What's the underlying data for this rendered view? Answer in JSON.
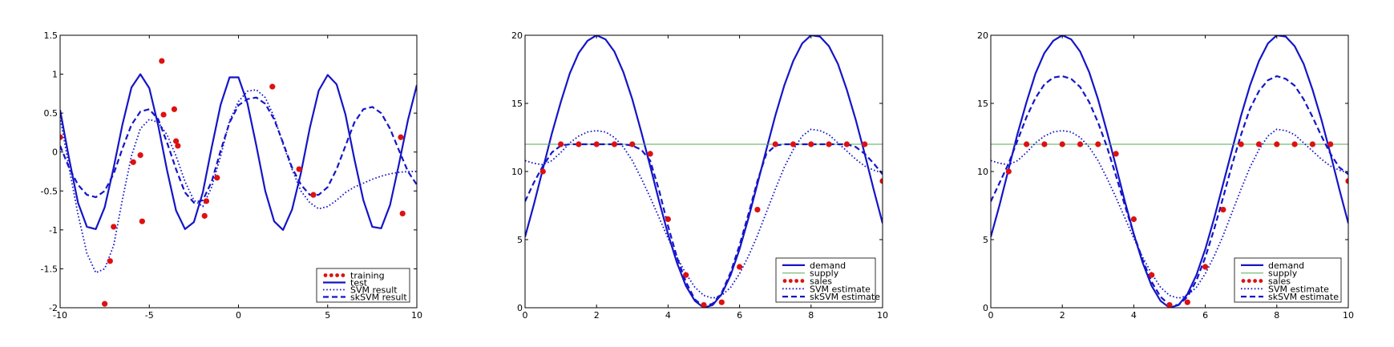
{
  "colors": {
    "line": "#1515c8",
    "points": "#dd1111",
    "supply": "#55aa55",
    "axis": "#000000",
    "legend_border": "#000000"
  },
  "chart_data": [
    {
      "type": "line",
      "title": "",
      "xlabel": "",
      "ylabel": "",
      "xlim": [
        -10,
        10
      ],
      "ylim": [
        -2,
        1.5
      ],
      "xticks": [
        "-10",
        "-5",
        "0",
        "5",
        "10"
      ],
      "yticks": [
        "-2",
        "-1.5",
        "-1",
        "-0.5",
        "0",
        "0.5",
        "1",
        "1.5"
      ],
      "grid": false,
      "legend_position": "lower-right",
      "series": [
        {
          "name": "training",
          "style": "points",
          "x": [
            -10,
            -7.5,
            -7.2,
            -7.0,
            -5.9,
            -5.5,
            -5.4,
            -4.3,
            -4.2,
            -3.6,
            -3.5,
            -3.4,
            -1.9,
            -1.8,
            -1.2,
            1.9,
            3.4,
            4.2,
            9.1,
            9.2
          ],
          "y": [
            0.19,
            -1.95,
            -1.4,
            -0.96,
            -0.13,
            -0.04,
            -0.89,
            1.17,
            0.48,
            0.55,
            0.14,
            0.08,
            -0.82,
            -0.63,
            -0.33,
            0.84,
            -0.22,
            -0.55,
            0.19,
            -0.79
          ]
        },
        {
          "name": "test",
          "style": "solid",
          "x": [
            -10,
            -9.5,
            -9,
            -8.5,
            -8,
            -7.5,
            -7,
            -6.5,
            -6,
            -5.5,
            -5,
            -4.5,
            -4,
            -3.5,
            -3,
            -2.5,
            -2,
            -1.5,
            -1,
            -0.5,
            0,
            0.5,
            1,
            1.5,
            2,
            2.5,
            3,
            3.5,
            4,
            4.5,
            5,
            5.5,
            6,
            6.5,
            7,
            7.5,
            8,
            8.5,
            9,
            9.5,
            10
          ],
          "y": [
            0.54,
            -0.08,
            -0.65,
            -0.96,
            -0.99,
            -0.71,
            -0.2,
            0.36,
            0.83,
            1.0,
            0.82,
            0.34,
            -0.24,
            -0.75,
            -0.99,
            -0.9,
            -0.52,
            0.06,
            0.61,
            0.96,
            0.96,
            0.63,
            0.08,
            -0.5,
            -0.89,
            -1.0,
            -0.74,
            -0.27,
            0.31,
            0.79,
            0.99,
            0.87,
            0.48,
            -0.09,
            -0.62,
            -0.96,
            -0.98,
            -0.68,
            -0.15,
            0.41,
            0.86
          ]
        },
        {
          "name": "SVM result",
          "style": "dotted",
          "x": [
            -10,
            -9.5,
            -9,
            -8.5,
            -8,
            -7.5,
            -7,
            -6.5,
            -6,
            -5.5,
            -5,
            -4.5,
            -4,
            -3.5,
            -3,
            -2.5,
            -2,
            -1.5,
            -1,
            -0.5,
            0,
            0.5,
            1,
            1.5,
            2,
            2.5,
            3,
            3.5,
            4,
            4.5,
            5,
            5.5,
            6,
            6.5,
            7,
            7.5,
            8,
            8.5,
            9,
            9.5,
            10
          ],
          "y": [
            0.45,
            -0.2,
            -0.8,
            -1.3,
            -1.55,
            -1.5,
            -1.2,
            -0.6,
            -0.05,
            0.3,
            0.42,
            0.38,
            0.22,
            -0.05,
            -0.38,
            -0.62,
            -0.7,
            -0.45,
            -0.05,
            0.4,
            0.65,
            0.78,
            0.8,
            0.7,
            0.45,
            0.1,
            -0.22,
            -0.5,
            -0.65,
            -0.73,
            -0.7,
            -0.62,
            -0.52,
            -0.45,
            -0.4,
            -0.35,
            -0.31,
            -0.28,
            -0.26,
            -0.25,
            -0.25
          ]
        },
        {
          "name": "skSVM result",
          "style": "dashed",
          "x": [
            -10,
            -9.5,
            -9,
            -8.5,
            -8,
            -7.5,
            -7,
            -6.5,
            -6,
            -5.5,
            -5,
            -4.5,
            -4,
            -3.5,
            -3,
            -2.5,
            -2,
            -1.5,
            -1,
            -0.5,
            0,
            0.5,
            1,
            1.5,
            2,
            2.5,
            3,
            3.5,
            4,
            4.5,
            5,
            5.5,
            6,
            6.5,
            7,
            7.5,
            8,
            8.5,
            9,
            9.5,
            10
          ],
          "y": [
            0.08,
            -0.2,
            -0.42,
            -0.55,
            -0.58,
            -0.5,
            -0.28,
            0.05,
            0.35,
            0.52,
            0.55,
            0.42,
            0.12,
            -0.22,
            -0.52,
            -0.65,
            -0.62,
            -0.38,
            0.02,
            0.38,
            0.6,
            0.68,
            0.7,
            0.62,
            0.42,
            0.12,
            -0.2,
            -0.42,
            -0.55,
            -0.55,
            -0.45,
            -0.22,
            0.08,
            0.38,
            0.55,
            0.58,
            0.5,
            0.3,
            0.02,
            -0.25,
            -0.42
          ]
        }
      ]
    },
    {
      "type": "line",
      "title": "",
      "xlabel": "",
      "ylabel": "",
      "xlim": [
        0,
        10
      ],
      "ylim": [
        0,
        20
      ],
      "xticks": [
        "0",
        "2",
        "4",
        "6",
        "8",
        "10"
      ],
      "yticks": [
        "0",
        "5",
        "10",
        "15",
        "20"
      ],
      "grid": false,
      "legend_position": "lower-right",
      "series": [
        {
          "name": "demand",
          "style": "solid",
          "x": [
            0,
            0.25,
            0.5,
            0.75,
            1,
            1.25,
            1.5,
            1.75,
            2,
            2.25,
            2.5,
            2.75,
            3,
            3.25,
            3.5,
            3.75,
            4,
            4.25,
            4.5,
            4.75,
            5,
            5.25,
            5.5,
            5.75,
            6,
            6.25,
            6.5,
            6.75,
            7,
            7.25,
            7.5,
            7.75,
            8,
            8.25,
            8.5,
            8.75,
            9,
            9.25,
            9.5,
            9.75,
            10
          ],
          "y": [
            5.2,
            7.6,
            10.2,
            12.8,
            15.1,
            17.2,
            18.7,
            19.6,
            20.0,
            19.7,
            18.8,
            17.3,
            15.3,
            12.9,
            10.4,
            7.8,
            5.4,
            3.3,
            1.6,
            0.5,
            0.0,
            0.2,
            1.0,
            2.4,
            4.3,
            6.6,
            9.1,
            11.6,
            14.1,
            16.3,
            18.1,
            19.4,
            20.0,
            19.9,
            19.2,
            17.9,
            16.0,
            13.8,
            11.3,
            8.7,
            6.2
          ]
        },
        {
          "name": "supply",
          "style": "thin",
          "x": [
            0,
            10
          ],
          "y": [
            12,
            12
          ]
        },
        {
          "name": "sales",
          "style": "points",
          "x": [
            0.5,
            1,
            1.5,
            2,
            2.5,
            3,
            3.5,
            4,
            4.5,
            5,
            5.5,
            6,
            6.5,
            7,
            7.5,
            8,
            8.5,
            9,
            9.5,
            10
          ],
          "y": [
            10.0,
            12,
            12,
            12,
            12,
            12,
            11.3,
            6.5,
            2.4,
            0.2,
            0.4,
            3.0,
            7.2,
            12,
            12,
            12,
            12,
            12,
            12,
            9.3
          ]
        },
        {
          "name": "SVM estimate",
          "style": "dotted",
          "x": [
            0,
            0.25,
            0.5,
            0.75,
            1,
            1.25,
            1.5,
            1.75,
            2,
            2.25,
            2.5,
            2.75,
            3,
            3.25,
            3.5,
            3.75,
            4,
            4.25,
            4.5,
            4.75,
            5,
            5.25,
            5.5,
            5.75,
            6,
            6.25,
            6.5,
            6.75,
            7,
            7.25,
            7.5,
            7.75,
            8,
            8.25,
            8.5,
            8.75,
            9,
            9.25,
            9.5,
            9.75,
            10
          ],
          "y": [
            10.8,
            10.6,
            10.5,
            10.8,
            11.4,
            12.1,
            12.6,
            12.9,
            13.0,
            12.9,
            12.5,
            11.8,
            10.8,
            9.5,
            8.1,
            6.6,
            5.1,
            3.7,
            2.5,
            1.5,
            0.9,
            0.7,
            0.9,
            1.5,
            2.5,
            3.8,
            5.3,
            7.0,
            8.7,
            10.3,
            11.6,
            12.6,
            13.1,
            13.0,
            12.7,
            12.1,
            11.5,
            10.9,
            10.4,
            10.1,
            9.9
          ]
        },
        {
          "name": "skSVM estimate",
          "style": "dashed",
          "x": [
            0,
            0.25,
            0.5,
            0.75,
            1,
            1.25,
            1.5,
            1.75,
            2,
            2.25,
            2.5,
            2.75,
            3,
            3.25,
            3.5,
            3.75,
            4,
            4.25,
            4.5,
            4.75,
            5,
            5.25,
            5.5,
            5.75,
            6,
            6.25,
            6.5,
            6.75,
            7,
            7.25,
            7.5,
            7.75,
            8,
            8.25,
            8.5,
            8.75,
            9,
            9.25,
            9.5,
            9.75,
            10
          ],
          "y": [
            7.8,
            9.2,
            10.4,
            11.4,
            11.9,
            12.0,
            12.0,
            12.0,
            12.0,
            12.0,
            12.0,
            12.0,
            11.9,
            11.6,
            10.8,
            8.6,
            6.0,
            3.7,
            1.9,
            0.6,
            0.1,
            0.3,
            1.1,
            2.6,
            4.6,
            6.9,
            9.3,
            11.3,
            11.9,
            12.0,
            12.0,
            12.0,
            12.0,
            12.0,
            12.0,
            12.0,
            12.0,
            11.8,
            11.3,
            10.6,
            9.8
          ]
        }
      ]
    },
    {
      "type": "line",
      "title": "",
      "xlabel": "",
      "ylabel": "",
      "xlim": [
        0,
        10
      ],
      "ylim": [
        0,
        20
      ],
      "xticks": [
        "0",
        "2",
        "4",
        "6",
        "8",
        "10"
      ],
      "yticks": [
        "0",
        "5",
        "10",
        "15",
        "20"
      ],
      "grid": false,
      "legend_position": "lower-right",
      "series": [
        {
          "name": "demand",
          "style": "solid",
          "x": [
            0,
            0.25,
            0.5,
            0.75,
            1,
            1.25,
            1.5,
            1.75,
            2,
            2.25,
            2.5,
            2.75,
            3,
            3.25,
            3.5,
            3.75,
            4,
            4.25,
            4.5,
            4.75,
            5,
            5.25,
            5.5,
            5.75,
            6,
            6.25,
            6.5,
            6.75,
            7,
            7.25,
            7.5,
            7.75,
            8,
            8.25,
            8.5,
            8.75,
            9,
            9.25,
            9.5,
            9.75,
            10
          ],
          "y": [
            5.2,
            7.6,
            10.2,
            12.8,
            15.1,
            17.2,
            18.7,
            19.6,
            20.0,
            19.7,
            18.8,
            17.3,
            15.3,
            12.9,
            10.4,
            7.8,
            5.4,
            3.3,
            1.6,
            0.5,
            0.0,
            0.2,
            1.0,
            2.4,
            4.3,
            6.6,
            9.1,
            11.6,
            14.1,
            16.3,
            18.1,
            19.4,
            20.0,
            19.9,
            19.2,
            17.9,
            16.0,
            13.8,
            11.3,
            8.7,
            6.2
          ]
        },
        {
          "name": "supply",
          "style": "thin",
          "x": [
            0,
            10
          ],
          "y": [
            12,
            12
          ]
        },
        {
          "name": "sales",
          "style": "points",
          "x": [
            0.5,
            1,
            1.5,
            2,
            2.5,
            3,
            3.5,
            4,
            4.5,
            5,
            5.5,
            6,
            6.5,
            7,
            7.5,
            8,
            8.5,
            9,
            9.5,
            10
          ],
          "y": [
            10.0,
            12,
            12,
            12,
            12,
            12,
            11.3,
            6.5,
            2.4,
            0.2,
            0.4,
            3.0,
            7.2,
            12,
            12,
            12,
            12,
            12,
            12,
            9.3
          ]
        },
        {
          "name": "SVM estimate",
          "style": "dotted",
          "x": [
            0,
            0.25,
            0.5,
            0.75,
            1,
            1.25,
            1.5,
            1.75,
            2,
            2.25,
            2.5,
            2.75,
            3,
            3.25,
            3.5,
            3.75,
            4,
            4.25,
            4.5,
            4.75,
            5,
            5.25,
            5.5,
            5.75,
            6,
            6.25,
            6.5,
            6.75,
            7,
            7.25,
            7.5,
            7.75,
            8,
            8.25,
            8.5,
            8.75,
            9,
            9.25,
            9.5,
            9.75,
            10
          ],
          "y": [
            10.8,
            10.6,
            10.5,
            10.8,
            11.4,
            12.1,
            12.6,
            12.9,
            13.0,
            12.9,
            12.5,
            11.8,
            10.8,
            9.5,
            8.1,
            6.6,
            5.1,
            3.7,
            2.5,
            1.5,
            0.9,
            0.7,
            0.9,
            1.5,
            2.5,
            3.8,
            5.3,
            7.0,
            8.7,
            10.3,
            11.6,
            12.6,
            13.1,
            13.0,
            12.7,
            12.1,
            11.5,
            10.9,
            10.4,
            10.1,
            9.9
          ]
        },
        {
          "name": "skSVM estimate",
          "style": "dashed",
          "x": [
            0,
            0.25,
            0.5,
            0.75,
            1,
            1.25,
            1.5,
            1.75,
            2,
            2.25,
            2.5,
            2.75,
            3,
            3.25,
            3.5,
            3.75,
            4,
            4.25,
            4.5,
            4.75,
            5,
            5.25,
            5.5,
            5.75,
            6,
            6.25,
            6.5,
            6.75,
            7,
            7.25,
            7.5,
            7.75,
            8,
            8.25,
            8.5,
            8.75,
            9,
            9.25,
            9.5,
            9.75,
            10
          ],
          "y": [
            7.8,
            9.2,
            10.6,
            12.3,
            14.0,
            15.4,
            16.4,
            16.9,
            17.0,
            16.8,
            16.2,
            15.1,
            13.6,
            11.8,
            9.7,
            7.5,
            5.4,
            3.5,
            1.9,
            0.8,
            0.2,
            0.2,
            0.8,
            2.0,
            3.7,
            5.8,
            8.1,
            10.5,
            12.7,
            14.6,
            15.9,
            16.7,
            17.0,
            16.8,
            16.3,
            15.3,
            14.0,
            12.6,
            11.3,
            10.3,
            9.8
          ]
        }
      ]
    }
  ]
}
